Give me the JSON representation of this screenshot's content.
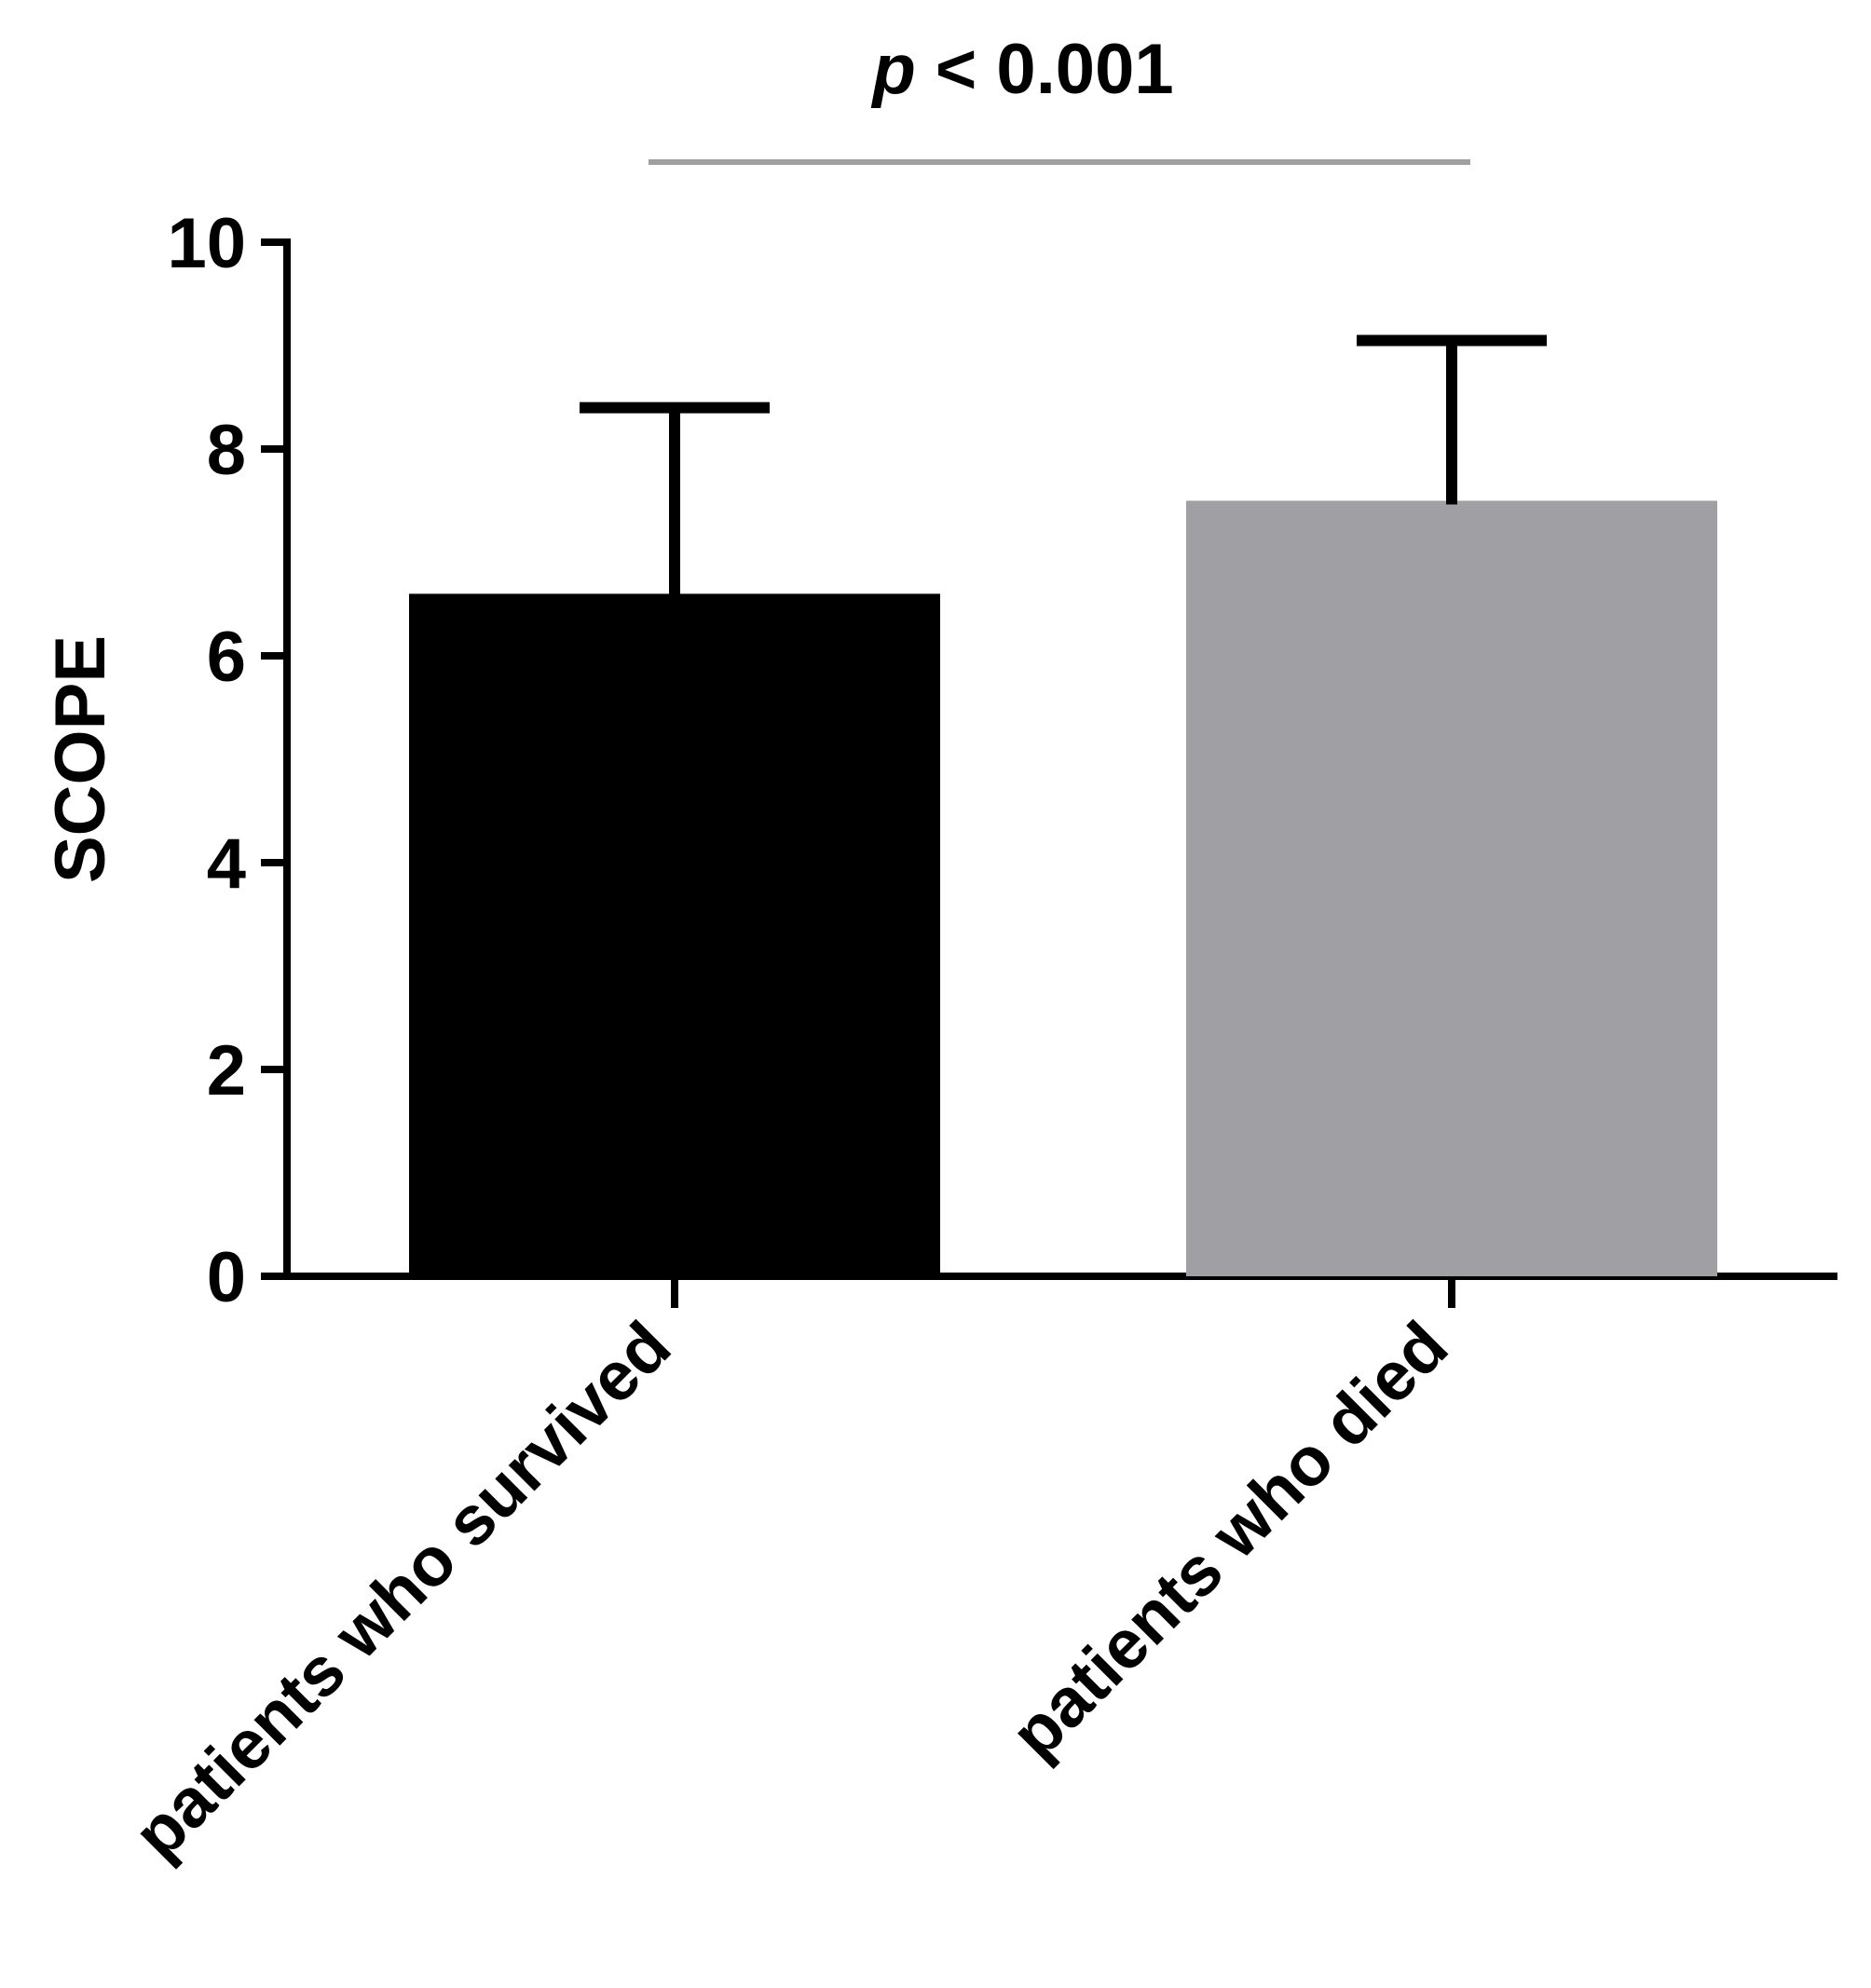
{
  "chart_data": {
    "type": "bar",
    "title": "",
    "xlabel": "",
    "ylabel": "SCOPE",
    "ylim": [
      0,
      10
    ],
    "yticks": [
      0,
      2,
      4,
      6,
      8,
      10
    ],
    "categories": [
      "patients who survived",
      "patients who died"
    ],
    "values": [
      6.6,
      7.5
    ],
    "error_upper": [
      8.4,
      9.05
    ],
    "grid": false,
    "legend": "none",
    "annotation": {
      "p_symbol": "p",
      "p_rest": " < 0.001",
      "spans_categories": [
        0,
        1
      ]
    },
    "colors": {
      "bars": [
        "#000000",
        "#a0a0a4"
      ],
      "axis": "#000000",
      "error_bars": "#000000",
      "bracket": "#a0a0a0"
    }
  }
}
